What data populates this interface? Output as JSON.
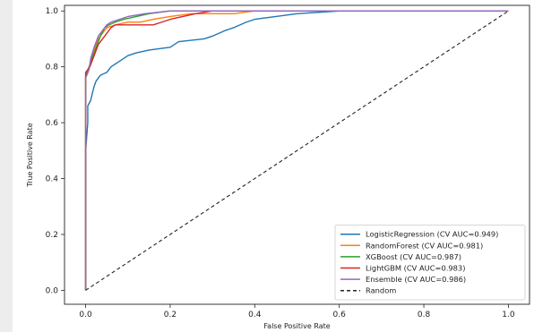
{
  "chart_data": {
    "type": "line",
    "xlabel": "False Positive Rate",
    "ylabel": "True Positive Rate",
    "xlim": [
      -0.05,
      1.05
    ],
    "ylim": [
      -0.05,
      1.02
    ],
    "xticks": [
      0.0,
      0.2,
      0.4,
      0.6,
      0.8,
      1.0
    ],
    "yticks": [
      0.0,
      0.2,
      0.4,
      0.6,
      0.8,
      1.0
    ],
    "xtick_labels": [
      "0.0",
      "0.2",
      "0.4",
      "0.6",
      "0.8",
      "1.0"
    ],
    "ytick_labels": [
      "0.0",
      "0.2",
      "0.4",
      "0.6",
      "0.8",
      "1.0"
    ],
    "grid": false,
    "legend_position": "bottom-right",
    "series": [
      {
        "name": "LogisticRegression (CV AUC=0.949)",
        "color": "#1f77b4",
        "x": [
          0.0,
          0.0,
          0.005,
          0.005,
          0.012,
          0.015,
          0.02,
          0.025,
          0.035,
          0.05,
          0.06,
          0.08,
          0.1,
          0.12,
          0.15,
          0.2,
          0.22,
          0.28,
          0.3,
          0.33,
          0.35,
          0.38,
          0.4,
          0.45,
          0.5,
          0.6,
          0.8,
          1.0
        ],
        "y": [
          0.0,
          0.5,
          0.6,
          0.66,
          0.68,
          0.7,
          0.73,
          0.75,
          0.77,
          0.78,
          0.8,
          0.82,
          0.84,
          0.85,
          0.86,
          0.87,
          0.89,
          0.9,
          0.91,
          0.93,
          0.94,
          0.96,
          0.97,
          0.98,
          0.99,
          1.0,
          1.0,
          1.0
        ]
      },
      {
        "name": "RandomForest (CV AUC=0.981)",
        "color": "#ff7f0e",
        "x": [
          0.0,
          0.0,
          0.008,
          0.012,
          0.02,
          0.03,
          0.04,
          0.05,
          0.07,
          0.1,
          0.13,
          0.16,
          0.2,
          0.25,
          0.3,
          0.35,
          0.4,
          0.5,
          0.6,
          0.8,
          1.0
        ],
        "y": [
          0.0,
          0.76,
          0.79,
          0.82,
          0.86,
          0.9,
          0.92,
          0.94,
          0.95,
          0.96,
          0.96,
          0.97,
          0.98,
          0.99,
          0.99,
          0.99,
          1.0,
          1.0,
          1.0,
          1.0,
          1.0
        ]
      },
      {
        "name": "XGBoost (CV AUC=0.987)",
        "color": "#2ca02c",
        "x": [
          0.0,
          0.0,
          0.008,
          0.015,
          0.025,
          0.035,
          0.045,
          0.055,
          0.07,
          0.09,
          0.12,
          0.15,
          0.2,
          0.3,
          0.5,
          1.0
        ],
        "y": [
          0.0,
          0.77,
          0.8,
          0.83,
          0.87,
          0.91,
          0.94,
          0.95,
          0.96,
          0.97,
          0.98,
          0.99,
          1.0,
          1.0,
          1.0,
          1.0
        ]
      },
      {
        "name": "LightGBM (CV AUC=0.983)",
        "color": "#d62728",
        "x": [
          0.0,
          0.0,
          0.01,
          0.02,
          0.03,
          0.04,
          0.05,
          0.06,
          0.07,
          0.09,
          0.13,
          0.16,
          0.18,
          0.2,
          0.23,
          0.26,
          0.3,
          0.35,
          0.5,
          1.0
        ],
        "y": [
          0.0,
          0.78,
          0.8,
          0.84,
          0.88,
          0.9,
          0.92,
          0.94,
          0.95,
          0.95,
          0.95,
          0.95,
          0.96,
          0.97,
          0.98,
          0.99,
          1.0,
          1.0,
          1.0,
          1.0
        ]
      },
      {
        "name": "Ensemble (CV AUC=0.986)",
        "color": "#9467bd",
        "x": [
          0.0,
          0.0,
          0.008,
          0.012,
          0.02,
          0.03,
          0.04,
          0.05,
          0.06,
          0.08,
          0.1,
          0.14,
          0.2,
          0.3,
          0.5,
          1.0
        ],
        "y": [
          0.0,
          0.76,
          0.79,
          0.83,
          0.87,
          0.91,
          0.93,
          0.95,
          0.96,
          0.97,
          0.98,
          0.99,
          1.0,
          1.0,
          1.0,
          1.0
        ]
      },
      {
        "name": "Random",
        "color": "#222222",
        "dashed": true,
        "x": [
          0.0,
          1.0
        ],
        "y": [
          0.0,
          1.0
        ]
      }
    ]
  }
}
